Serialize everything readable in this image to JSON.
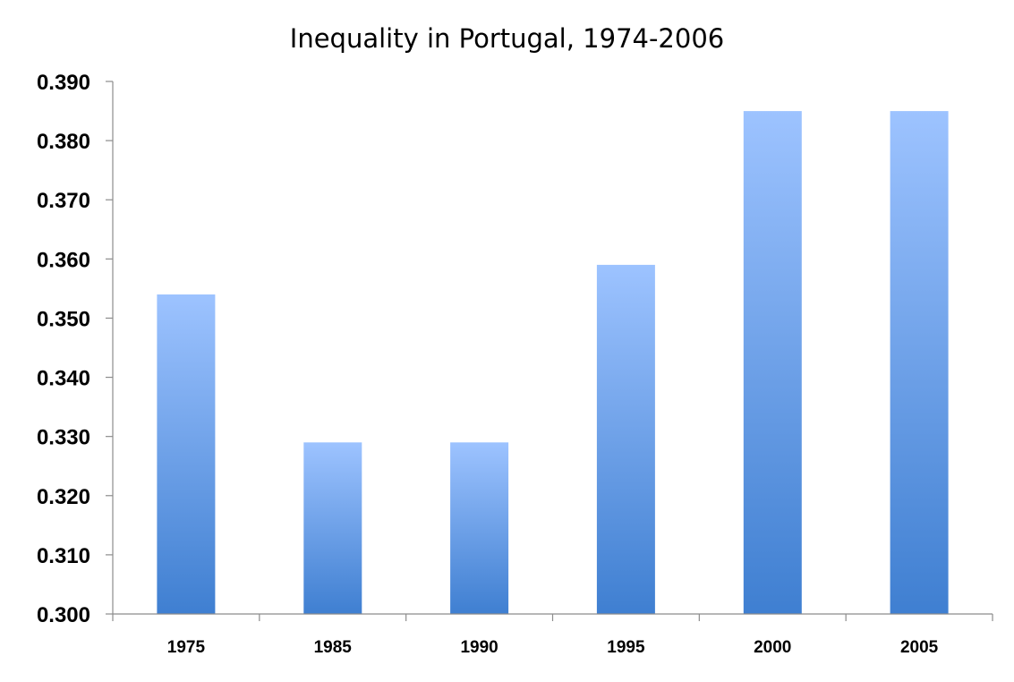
{
  "chart_data": {
    "type": "bar",
    "title": "Inequality in Portugal, 1974-2006",
    "xlabel": "",
    "ylabel": "",
    "categories": [
      "1975",
      "1985",
      "1990",
      "1995",
      "2000",
      "2005"
    ],
    "values": [
      0.354,
      0.329,
      0.329,
      0.359,
      0.385,
      0.385
    ],
    "ylim": [
      0.3,
      0.39
    ],
    "yticks": [
      "0.300",
      "0.310",
      "0.320",
      "0.330",
      "0.340",
      "0.350",
      "0.360",
      "0.370",
      "0.380",
      "0.390"
    ],
    "grid": false,
    "legend": "none",
    "colors": {
      "bar_top": "#9dc3ff",
      "bar_bottom": "#3f7fd1",
      "axis": "#8c8c8c"
    }
  }
}
